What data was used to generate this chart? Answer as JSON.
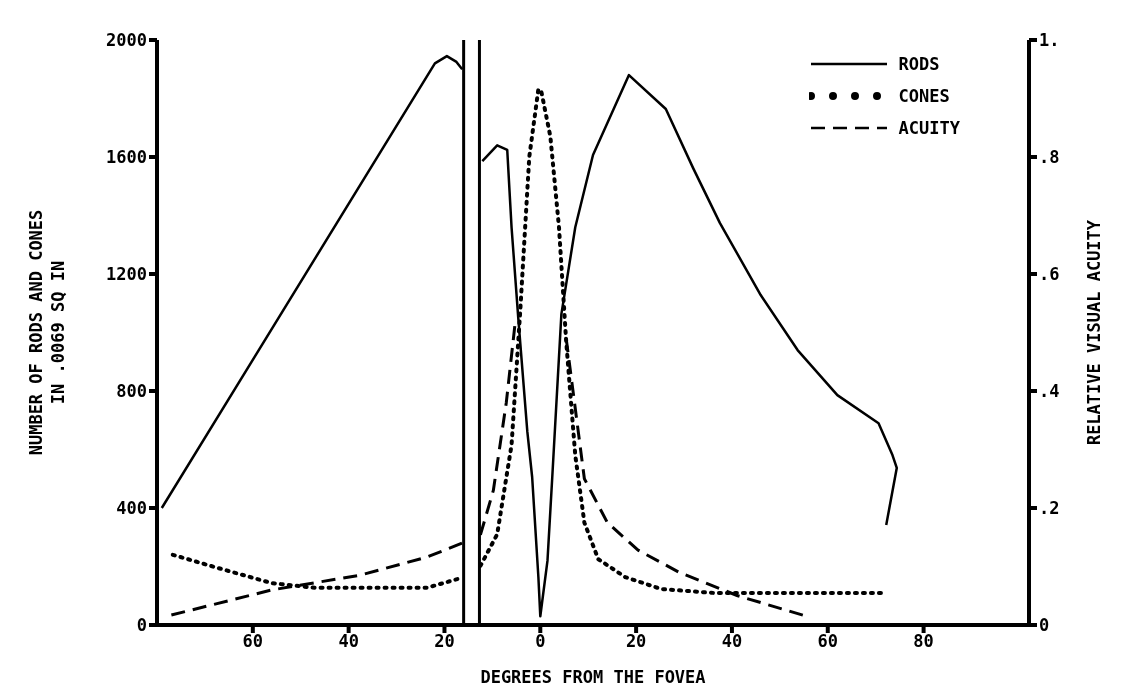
{
  "chart_data": {
    "type": "line",
    "xlabel": "DEGREES FROM THE FOVEA",
    "ylabel": "NUMBER OF RODS AND CONES\nIN .0069 SQ IN",
    "y2label": "RELATIVE VISUAL ACUITY",
    "xlim": [
      -80,
      102
    ],
    "xticks": [
      {
        "value": -60,
        "label": "60"
      },
      {
        "value": -40,
        "label": "40"
      },
      {
        "value": -20,
        "label": "20"
      },
      0,
      20,
      40,
      60,
      80
    ],
    "ylim": [
      0,
      2000
    ],
    "yticks": [
      0,
      400,
      800,
      1200,
      1600,
      2000
    ],
    "y2lim": [
      0,
      1
    ],
    "y2ticks": [
      {
        "value": 0,
        "label": "0"
      },
      {
        "value": 0.2,
        "label": ".2"
      },
      {
        "value": 0.4,
        "label": ".4"
      },
      {
        "value": 0.6,
        "label": ".6"
      },
      {
        "value": 0.8,
        "label": ".8"
      },
      {
        "value": 1,
        "label": "1."
      }
    ],
    "legend": "top right",
    "marker": "none",
    "ref_lines": [
      {
        "axis": "x",
        "value": -16,
        "color": "#000000"
      },
      {
        "axis": "x",
        "value": -12.7,
        "color": "#000000"
      }
    ],
    "series": [
      {
        "name": "RODS",
        "color": "#000000",
        "line_style": "solid",
        "x": [
          -79,
          -22,
          -19.5,
          -17.5,
          -16.3,
          -14,
          -12.1,
          -9,
          -6.9,
          -6,
          -4.6,
          -2.7,
          -1.7,
          -0.4,
          0,
          1.5,
          2.5,
          4.4,
          7.3,
          11,
          18.5,
          26.2,
          31.9,
          37.5,
          46,
          53.7,
          62,
          70.6,
          73.5,
          74.4,
          72.2
        ],
        "values": [
          400,
          1920,
          1945,
          1925,
          1900,
          null,
          1586,
          1640,
          1624,
          1360,
          1050,
          660,
          506,
          164,
          30,
          220,
          506,
          1063,
          1360,
          1607,
          1880,
          1764,
          1562,
          1374,
          1128,
          940,
          786,
          690,
          581,
          537,
          342
        ]
      },
      {
        "name": "CONES",
        "color": "#000000",
        "line_style": "dotted",
        "x": [
          -76.7,
          -67.3,
          -56,
          -47,
          -37.7,
          -23.7,
          -17.3,
          -14,
          -12.5,
          -9,
          -6,
          -4.2,
          -2.3,
          -0.4,
          0.2,
          2.1,
          3.9,
          5.4,
          7.3,
          9.2,
          12.1,
          17.7,
          25.2,
          36.7,
          50.8,
          71.3
        ],
        "values": [
          240,
          195,
          143,
          127,
          127,
          127,
          157,
          null,
          202,
          310,
          615,
          1070,
          1600,
          1832,
          1825,
          1670,
          1360,
          970,
          580,
          350,
          225,
          164,
          123,
          109,
          109,
          109
        ]
      },
      {
        "name": "ACUITY",
        "color": "#000000",
        "line_style": "dashed",
        "axis": "y2",
        "x": [
          -77,
          -56,
          -37.7,
          -23.7,
          -16.3,
          -14,
          -12.5,
          -9.8,
          -7.1,
          -5.2,
          0,
          5.4,
          7.3,
          9.2,
          14,
          20.4,
          29,
          41.2,
          55.6
        ],
        "values": [
          0.017,
          0.06,
          0.085,
          0.116,
          0.14,
          null,
          0.154,
          0.23,
          0.38,
          0.52,
          null,
          0.49,
          0.37,
          0.25,
          0.175,
          0.128,
          0.09,
          0.05,
          0.015
        ]
      }
    ]
  }
}
